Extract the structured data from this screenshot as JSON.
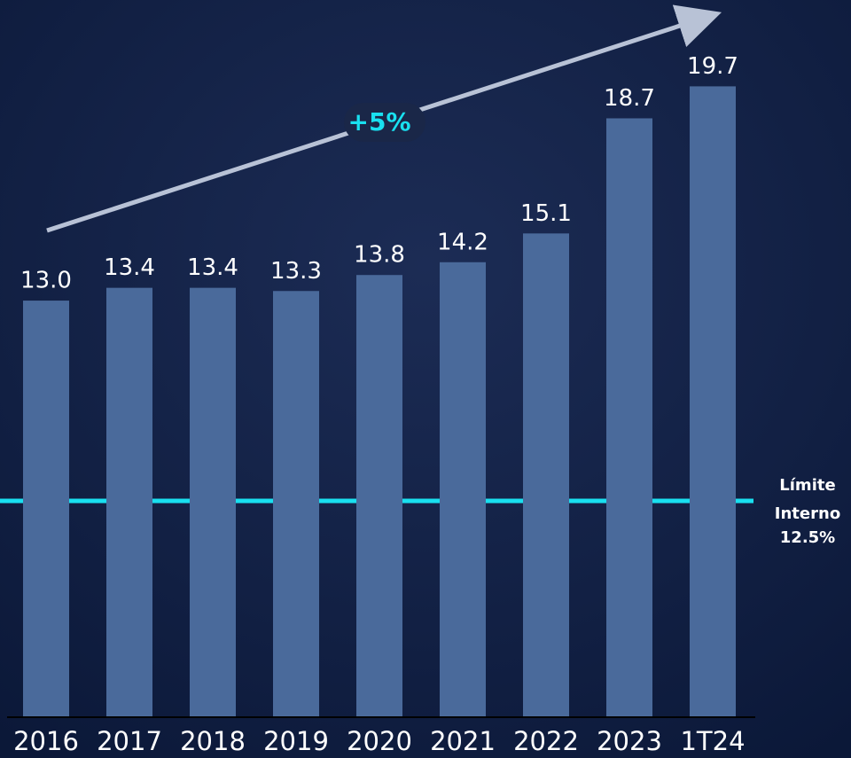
{
  "chart_data": {
    "type": "bar",
    "categories": [
      "2016",
      "2017",
      "2018",
      "2019",
      "2020",
      "2021",
      "2022",
      "2023",
      "1T24"
    ],
    "values": [
      13.0,
      13.4,
      13.4,
      13.3,
      13.8,
      14.2,
      15.1,
      18.7,
      19.7
    ],
    "value_labels": [
      "13.0",
      "13.4",
      "13.4",
      "13.3",
      "13.8",
      "14.2",
      "15.1",
      "18.7",
      "19.7"
    ],
    "color": "#4a6a9b",
    "ylim": [
      0,
      22.4
    ],
    "annotations": {
      "growth": "+5%",
      "limit": [
        "Límite",
        "Interno",
        "12.5%"
      ]
    }
  }
}
